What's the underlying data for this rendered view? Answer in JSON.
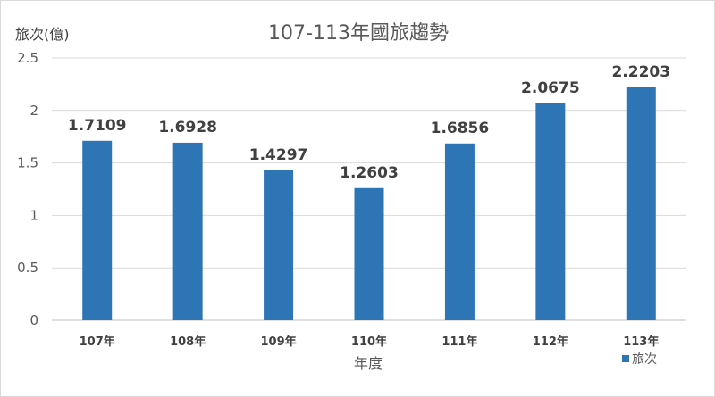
{
  "chart_data": {
    "type": "bar",
    "title": "107-113年國旅趨勢",
    "ylabel": "旅次(億)",
    "xlabel": "年度",
    "categories": [
      "107年",
      "108年",
      "109年",
      "110年",
      "111年",
      "112年",
      "113年"
    ],
    "series": [
      {
        "name": "旅次",
        "values": [
          1.7109,
          1.6928,
          1.4297,
          1.2603,
          1.6856,
          2.0675,
          2.2203
        ],
        "labels": [
          "1.7109",
          "1.6928",
          "1.4297",
          "1.2603",
          "1.6856",
          "2.0675",
          "2.2203"
        ],
        "color": "#2e75b6"
      }
    ],
    "ylim": [
      0,
      2.5
    ],
    "yticks": [
      "0",
      "0.5",
      "1",
      "1.5",
      "2",
      "2.5"
    ],
    "ytick_values": [
      0,
      0.5,
      1,
      1.5,
      2,
      2.5
    ],
    "grid": true,
    "legend_position": "bottom-right",
    "colors": {
      "bar": "#2e75b6",
      "grid": "#d9d9d9",
      "axis": "#bfbfbf"
    }
  }
}
